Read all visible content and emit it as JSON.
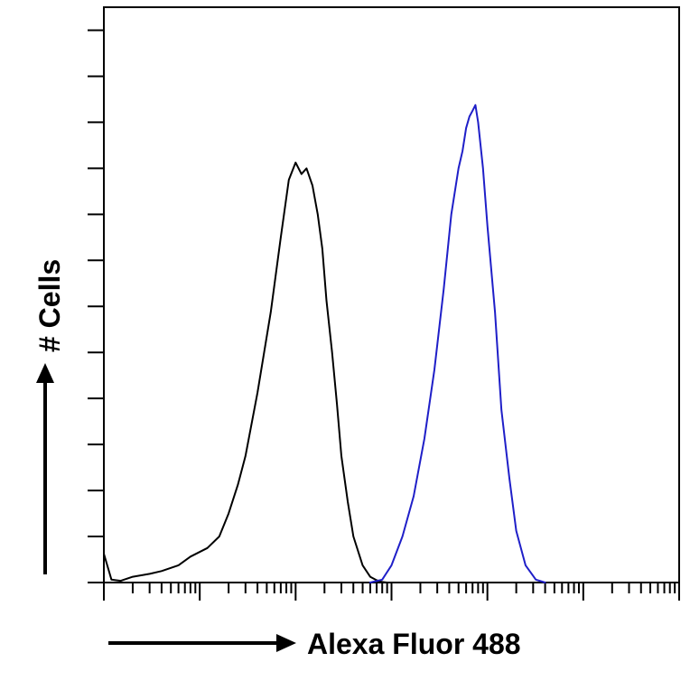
{
  "chart_data": {
    "type": "line",
    "title": "",
    "xlabel": "Alexa Fluor 488",
    "ylabel": "# Cells",
    "x_scale": "log",
    "xlim": [
      1,
      1000000
    ],
    "ylim": [
      0,
      100
    ],
    "grid": false,
    "legend": "none",
    "x_ticks": [
      1,
      10,
      100,
      1000,
      10000,
      100000,
      1000000
    ],
    "y_ticks": [
      0,
      8,
      16,
      24,
      32,
      40,
      48,
      56,
      64,
      72,
      80,
      88,
      96
    ],
    "series": [
      {
        "color": "#000000",
        "x": [
          1,
          1.2,
          1.5,
          2,
          3,
          4,
          6,
          8,
          12,
          16,
          20,
          25,
          30,
          40,
          55,
          70,
          85,
          100,
          115,
          130,
          150,
          170,
          190,
          210,
          240,
          270,
          300,
          350,
          400,
          500,
          600,
          700,
          800,
          900
        ],
        "y": [
          5,
          0.5,
          0.3,
          1,
          1.5,
          2,
          3,
          4.5,
          6,
          8,
          12,
          17,
          22,
          33,
          47,
          60,
          70,
          73,
          71,
          72,
          69,
          64,
          58,
          49,
          40,
          31,
          22,
          14,
          8,
          3,
          1,
          0.4,
          0.1,
          0
        ]
      },
      {
        "color": "#1f1fc8",
        "x": [
          600,
          800,
          1000,
          1300,
          1700,
          2200,
          2800,
          3500,
          4200,
          5000,
          5500,
          6000,
          6500,
          7000,
          7500,
          8000,
          9000,
          10000,
          12000,
          14000,
          17000,
          20000,
          25000,
          32000,
          40000
        ],
        "y": [
          0,
          0.5,
          3,
          8,
          15,
          25,
          37,
          51,
          64,
          72,
          75,
          79,
          81,
          82,
          83,
          80,
          72,
          62,
          47,
          30,
          18,
          9,
          3,
          0.5,
          0
        ]
      }
    ]
  }
}
